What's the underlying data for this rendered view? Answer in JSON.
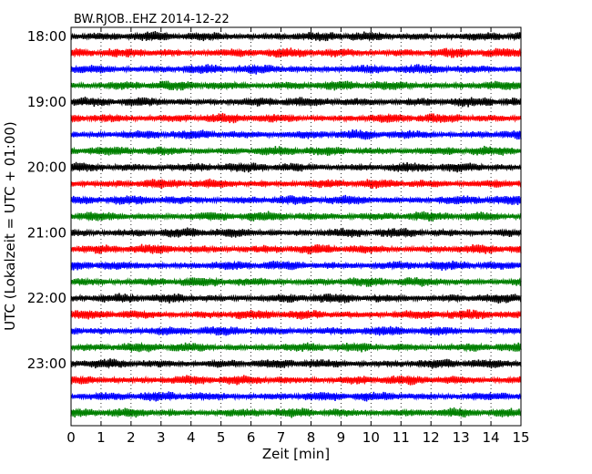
{
  "chart_data": {
    "type": "line",
    "title": "BW.RJOB..EHZ 2014-12-22",
    "xlabel": "Zeit  [min]",
    "ylabel": "UTC (Lokalzeit = UTC + 01:00)",
    "xlim": [
      0,
      15
    ],
    "x_ticks": [
      "0",
      "1",
      "2",
      "3",
      "4",
      "5",
      "6",
      "7",
      "8",
      "9",
      "10",
      "11",
      "12",
      "13",
      "14",
      "15"
    ],
    "y_ticks": [
      "18:00",
      "19:00",
      "20:00",
      "21:00",
      "22:00",
      "23:00"
    ],
    "vertical_grid": "dotted",
    "trace_colors": [
      "#000000",
      "#ff0000",
      "#0000ff",
      "#008000"
    ],
    "series": [
      {
        "values": [
          "18:00",
          "18:15",
          "18:30",
          "18:45",
          "19:00",
          "19:15",
          "19:30",
          "19:45",
          "20:00",
          "20:15",
          "20:30",
          "20:45",
          "21:00",
          "21:15",
          "21:30",
          "21:45",
          "22:00",
          "22:15",
          "22:30",
          "22:45",
          "23:00",
          "23:15",
          "23:30",
          "23:45"
        ]
      }
    ]
  }
}
